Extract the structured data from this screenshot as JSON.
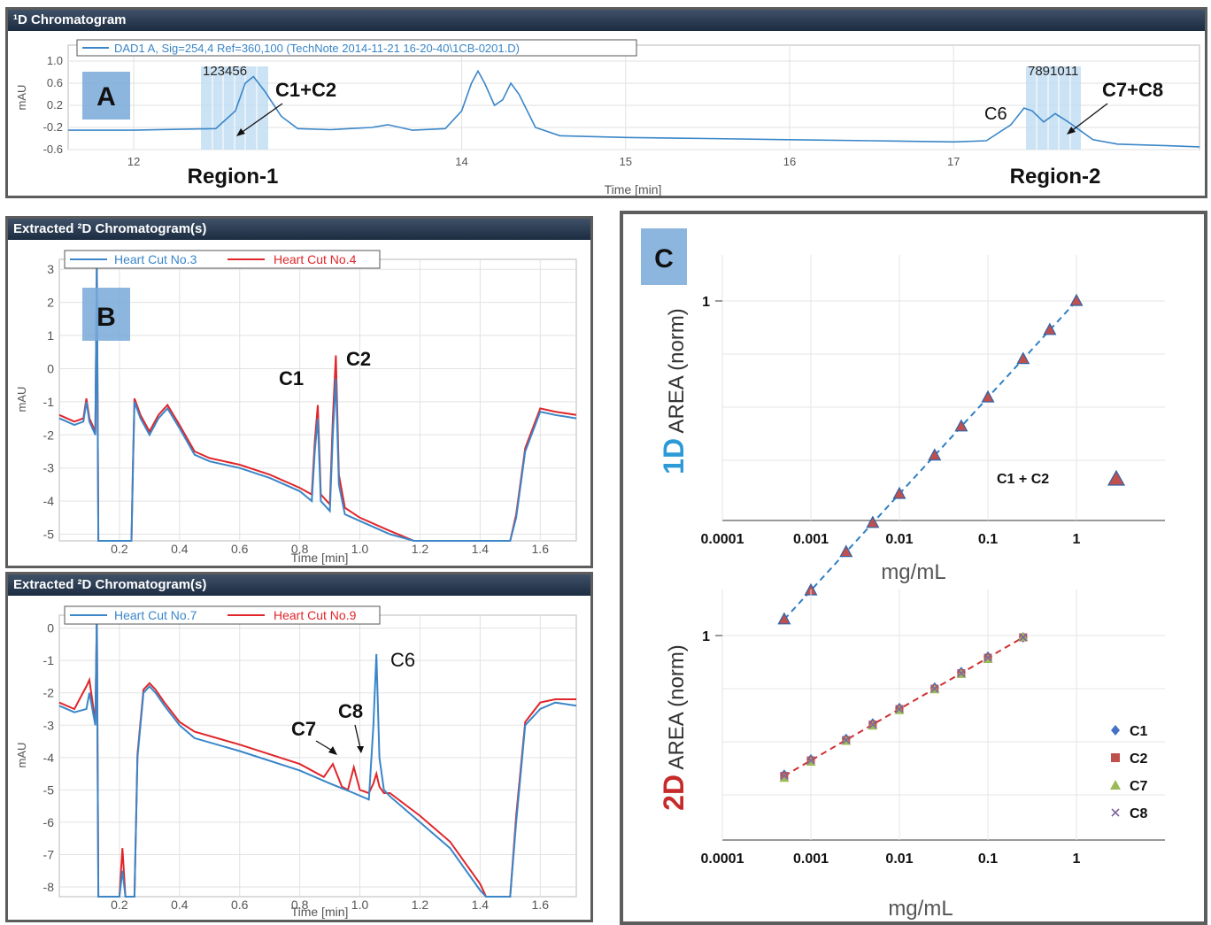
{
  "panel_a": {
    "title": "¹D Chromatogram",
    "legend": "DAD1 A, Sig=254,4 Ref=360,100 (TechNote 2014-11-21 16-20-40\\1CB-0201.D)",
    "ylabel": "mAU",
    "xlabel": "Time [min]",
    "yticks": [
      "1.0",
      "0.6",
      "0.2",
      "-0.2",
      "-0.6"
    ],
    "xticks": [
      "12",
      "14",
      "15",
      "16",
      "17"
    ],
    "badge": "A",
    "cut_numbers_1": "123456",
    "cut_numbers_2": "7891011",
    "ann_c1c2": "C1+C2",
    "ann_c6": "C6",
    "ann_c7c8": "C7+C8",
    "region1": "Region-1",
    "region2": "Region-2"
  },
  "panel_b1": {
    "title": "Extracted ²D Chromatogram(s)",
    "legend": [
      "Heart Cut No.3",
      "Heart Cut No.4"
    ],
    "ylabel": "mAU",
    "xlabel": "Time [min]",
    "yticks": [
      "3",
      "2",
      "1",
      "0",
      "-1",
      "-2",
      "-3",
      "-4",
      "-5"
    ],
    "xticks": [
      "0.2",
      "0.4",
      "0.6",
      "0.8",
      "1.0",
      "1.2",
      "1.4",
      "1.6"
    ],
    "badge": "B",
    "ann_c1": "C1",
    "ann_c2": "C2"
  },
  "panel_b2": {
    "title": "Extracted ²D Chromatogram(s)",
    "legend": [
      "Heart Cut No.7",
      "Heart Cut No.9"
    ],
    "ylabel": "mAU",
    "xlabel": "Time [min]",
    "yticks": [
      "0",
      "-1",
      "-2",
      "-3",
      "-4",
      "-5",
      "-6",
      "-7",
      "-8"
    ],
    "xticks": [
      "0.2",
      "0.4",
      "0.6",
      "0.8",
      "1.0",
      "1.2",
      "1.4",
      "1.6"
    ],
    "ann_c6": "C6",
    "ann_c7": "C7",
    "ann_c8": "C8"
  },
  "panel_c": {
    "badge": "C",
    "top": {
      "ylabel_prefix": "1D",
      "ylabel": " AREA (norm)",
      "xlabel": "mg/mL",
      "ytick": "1",
      "xticks": [
        "0.0001",
        "0.001",
        "0.01",
        "0.1",
        "1"
      ],
      "legend": "C1 + C2"
    },
    "bottom": {
      "ylabel_prefix": "2D",
      "ylabel": " AREA (norm)",
      "xlabel": "mg/mL",
      "ytick": "1",
      "xticks": [
        "0.0001",
        "0.001",
        "0.01",
        "0.1",
        "1"
      ],
      "legend": [
        "C1",
        "C2",
        "C7",
        "C8"
      ]
    }
  },
  "colors": {
    "blue_trace": "#3a86c8",
    "red_trace": "#e0262a",
    "badge": "#79a9d8",
    "label_1d": "#2c9ad6",
    "label_2d": "#c62a2a",
    "marker_c1": "#4472c4",
    "marker_c2": "#c0504d",
    "marker_c7": "#9bbb59",
    "marker_c8": "#8064a2"
  },
  "chart_data": [
    {
      "type": "line",
      "x": [
        11.6,
        12.0,
        12.3,
        12.5,
        12.62,
        12.68,
        12.73,
        12.8,
        12.9,
        13.0,
        13.2,
        13.45,
        13.55,
        13.7,
        13.9,
        14.0,
        14.06,
        14.1,
        14.14,
        14.2,
        14.25,
        14.3,
        14.35,
        14.45,
        14.6,
        15.0,
        15.5,
        16.0,
        16.5,
        17.0,
        17.2,
        17.35,
        17.43,
        17.48,
        17.55,
        17.62,
        17.7,
        17.85,
        18.0,
        18.3,
        18.5
      ],
      "y": [
        -0.25,
        -0.25,
        -0.23,
        -0.22,
        0.1,
        0.6,
        0.72,
        0.45,
        0.0,
        -0.22,
        -0.24,
        -0.2,
        -0.15,
        -0.25,
        -0.22,
        0.1,
        0.6,
        0.82,
        0.6,
        0.2,
        0.3,
        0.6,
        0.4,
        -0.2,
        -0.35,
        -0.38,
        -0.4,
        -0.42,
        -0.44,
        -0.46,
        -0.44,
        -0.15,
        0.15,
        0.1,
        -0.1,
        0.05,
        -0.1,
        -0.42,
        -0.5,
        -0.53,
        -0.55
      ],
      "xlim": [
        11.6,
        18.5
      ],
      "ylim": [
        -0.6,
        1.0
      ],
      "xlabel": "Time [min]",
      "ylabel": "mAU"
    },
    {
      "type": "line",
      "xlim": [
        0.0,
        1.72
      ],
      "ylim": [
        -5.2,
        3.3
      ],
      "series": [
        {
          "name": "Heart Cut No.3",
          "x": [
            0.0,
            0.05,
            0.08,
            0.09,
            0.1,
            0.12,
            0.125,
            0.13,
            0.135,
            0.14,
            0.24,
            0.245,
            0.25,
            0.27,
            0.3,
            0.33,
            0.36,
            0.4,
            0.45,
            0.5,
            0.6,
            0.7,
            0.8,
            0.84,
            0.85,
            0.86,
            0.87,
            0.9,
            0.91,
            0.92,
            0.93,
            0.95,
            1.0,
            1.1,
            1.18,
            1.5,
            1.52,
            1.55,
            1.6,
            1.65,
            1.72
          ],
          "y": [
            -1.5,
            -1.7,
            -1.6,
            -1.0,
            -1.6,
            -2.0,
            3.5,
            -5.5,
            -5.5,
            -5.5,
            -5.5,
            -3.0,
            -1.0,
            -1.5,
            -2.0,
            -1.5,
            -1.2,
            -1.8,
            -2.6,
            -2.8,
            -3.0,
            -3.3,
            -3.7,
            -4.0,
            -2.5,
            -1.5,
            -4.0,
            -4.3,
            -2.0,
            -0.3,
            -3.5,
            -4.4,
            -4.6,
            -5.0,
            -5.4,
            -5.4,
            -4.5,
            -2.5,
            -1.3,
            -1.4,
            -1.5
          ]
        },
        {
          "name": "Heart Cut No.4",
          "x": [
            0.0,
            0.05,
            0.08,
            0.09,
            0.1,
            0.12,
            0.125,
            0.13,
            0.135,
            0.14,
            0.24,
            0.245,
            0.25,
            0.27,
            0.3,
            0.33,
            0.36,
            0.4,
            0.45,
            0.5,
            0.6,
            0.7,
            0.8,
            0.84,
            0.85,
            0.86,
            0.87,
            0.9,
            0.91,
            0.92,
            0.93,
            0.95,
            1.0,
            1.1,
            1.18,
            1.5,
            1.52,
            1.55,
            1.6,
            1.65,
            1.72
          ],
          "y": [
            -1.4,
            -1.6,
            -1.5,
            -0.9,
            -1.5,
            -1.9,
            3.5,
            -5.5,
            -5.5,
            -5.5,
            -5.5,
            -2.9,
            -0.9,
            -1.4,
            -1.9,
            -1.4,
            -1.1,
            -1.7,
            -2.5,
            -2.7,
            -2.9,
            -3.2,
            -3.6,
            -3.8,
            -2.2,
            -1.1,
            -3.8,
            -4.1,
            -1.5,
            0.4,
            -3.2,
            -4.2,
            -4.5,
            -4.9,
            -5.3,
            -5.3,
            -4.4,
            -2.4,
            -1.2,
            -1.3,
            -1.4
          ]
        }
      ],
      "xlabel": "Time [min]",
      "ylabel": "mAU"
    },
    {
      "type": "line",
      "xlim": [
        0.0,
        1.72
      ],
      "ylim": [
        -8.3,
        0.4
      ],
      "series": [
        {
          "name": "Heart Cut No.7",
          "x": [
            0.0,
            0.05,
            0.09,
            0.1,
            0.12,
            0.125,
            0.13,
            0.14,
            0.2,
            0.21,
            0.22,
            0.23,
            0.25,
            0.26,
            0.28,
            0.3,
            0.32,
            0.35,
            0.4,
            0.45,
            0.6,
            0.8,
            0.9,
            0.98,
            1.03,
            1.045,
            1.055,
            1.065,
            1.08,
            1.1,
            1.2,
            1.3,
            1.4,
            1.42,
            1.5,
            1.52,
            1.55,
            1.6,
            1.65,
            1.72
          ],
          "y": [
            -2.4,
            -2.6,
            -2.5,
            -2.0,
            -3.0,
            0.5,
            -8.5,
            -8.5,
            -8.5,
            -7.5,
            -8.5,
            -8.5,
            -8.5,
            -4.0,
            -2.0,
            -1.8,
            -2.0,
            -2.4,
            -3.0,
            -3.4,
            -3.8,
            -4.4,
            -4.8,
            -5.1,
            -5.3,
            -3.0,
            -0.8,
            -4.0,
            -5.0,
            -5.2,
            -6.0,
            -6.8,
            -8.1,
            -8.5,
            -8.5,
            -6.0,
            -3.0,
            -2.5,
            -2.3,
            -2.4
          ]
        },
        {
          "name": "Heart Cut No.9",
          "x": [
            0.0,
            0.05,
            0.09,
            0.1,
            0.12,
            0.125,
            0.13,
            0.14,
            0.2,
            0.21,
            0.22,
            0.23,
            0.25,
            0.26,
            0.28,
            0.3,
            0.32,
            0.35,
            0.4,
            0.45,
            0.6,
            0.8,
            0.88,
            0.91,
            0.94,
            0.96,
            0.98,
            1.0,
            1.03,
            1.045,
            1.055,
            1.065,
            1.08,
            1.1,
            1.2,
            1.3,
            1.4,
            1.42,
            1.5,
            1.52,
            1.55,
            1.6,
            1.65,
            1.72
          ],
          "y": [
            -2.3,
            -2.5,
            -1.8,
            -1.6,
            -2.9,
            0.5,
            -8.5,
            -8.5,
            -8.5,
            -6.8,
            -8.5,
            -8.5,
            -8.5,
            -3.9,
            -1.9,
            -1.7,
            -1.9,
            -2.3,
            -2.9,
            -3.2,
            -3.6,
            -4.2,
            -4.6,
            -4.2,
            -4.9,
            -5.0,
            -4.3,
            -5.0,
            -5.1,
            -4.8,
            -4.5,
            -4.9,
            -5.1,
            -5.1,
            -5.8,
            -6.6,
            -7.9,
            -8.4,
            -8.5,
            -5.8,
            -2.9,
            -2.3,
            -2.2,
            -2.2
          ]
        }
      ],
      "xlabel": "Time [min]",
      "ylabel": "mAU"
    },
    {
      "type": "scatter",
      "x_scale": "log",
      "y_scale": "log",
      "series": [
        {
          "name": "C1 + C2",
          "x": [
            0.0005,
            0.001,
            0.0025,
            0.005,
            0.01,
            0.025,
            0.05,
            0.1,
            0.25,
            0.5,
            1.0
          ],
          "y": [
            0.0005,
            0.001,
            0.0025,
            0.005,
            0.01,
            0.025,
            0.05,
            0.1,
            0.25,
            0.5,
            1.0
          ]
        }
      ],
      "xlabel": "mg/mL",
      "ylabel": "1D AREA (norm)"
    },
    {
      "type": "scatter",
      "x_scale": "log",
      "y_scale": "log",
      "series": [
        {
          "name": "C1",
          "x": [
            0.0005,
            0.001,
            0.0025,
            0.005,
            0.01,
            0.025,
            0.05,
            0.1,
            0.25
          ],
          "y": [
            0.0021,
            0.0042,
            0.0105,
            0.021,
            0.042,
            0.105,
            0.21,
            0.42,
            1.0
          ]
        },
        {
          "name": "C2",
          "x": [
            0.0005,
            0.001,
            0.0025,
            0.005,
            0.01,
            0.025,
            0.05,
            0.1,
            0.25
          ],
          "y": [
            0.002,
            0.004,
            0.01,
            0.02,
            0.04,
            0.1,
            0.2,
            0.4,
            1.0
          ]
        },
        {
          "name": "C7",
          "x": [
            0.0005,
            0.001,
            0.0025,
            0.005,
            0.01,
            0.025,
            0.05,
            0.1,
            0.25
          ],
          "y": [
            0.0018,
            0.0037,
            0.0094,
            0.0187,
            0.0375,
            0.095,
            0.19,
            0.37,
            1.0
          ]
        },
        {
          "name": "C8",
          "x": [
            0.0005,
            0.001,
            0.0025,
            0.005,
            0.01,
            0.025,
            0.05,
            0.1,
            0.25
          ],
          "y": [
            0.002,
            0.004,
            0.01,
            0.02,
            0.04,
            0.1,
            0.2,
            0.4,
            1.0
          ]
        }
      ],
      "xlabel": "mg/mL",
      "ylabel": "2D AREA (norm)"
    }
  ]
}
